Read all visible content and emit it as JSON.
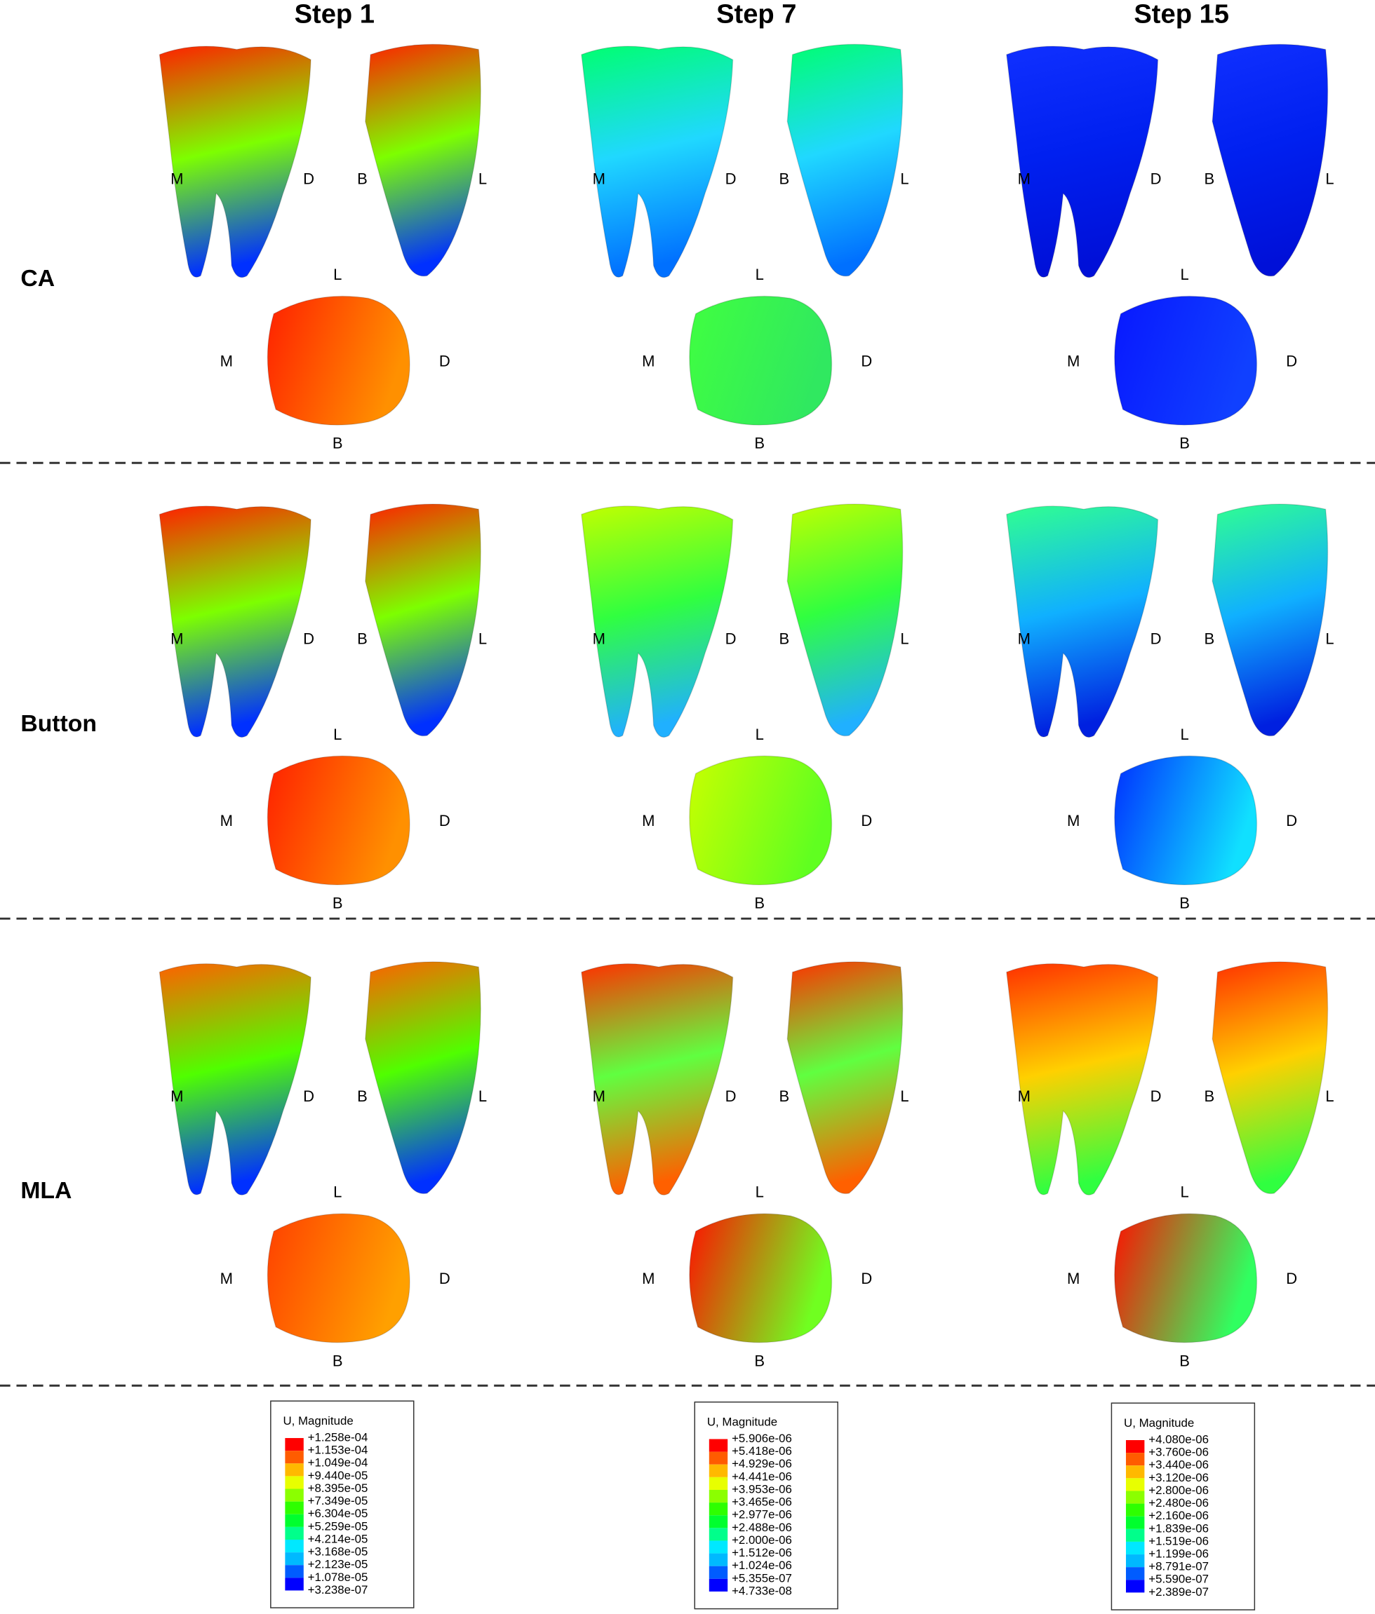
{
  "column_headers": [
    "Step 1",
    "Step 7",
    "Step 15"
  ],
  "row_labels": [
    "CA",
    "Button",
    "MLA"
  ],
  "orientation": {
    "mesial": "M",
    "distal": "D",
    "buccal": "B",
    "lingual": "L"
  },
  "legend_colors": [
    "#ff0000",
    "#ff5c00",
    "#ffb900",
    "#e8ff00",
    "#8bff00",
    "#2eff00",
    "#00ff2e",
    "#00ff8b",
    "#00e8ff",
    "#00b9ff",
    "#005cff",
    "#0000ff"
  ],
  "legends": [
    {
      "title": "U, Magnitude",
      "entries": [
        "+1.258e-04",
        "+1.153e-04",
        "+1.049e-04",
        "+9.440e-05",
        "+8.395e-05",
        "+7.349e-05",
        "+6.304e-05",
        "+5.259e-05",
        "+4.214e-05",
        "+3.168e-05",
        "+2.123e-05",
        "+1.078e-05",
        "+3.238e-07"
      ]
    },
    {
      "title": "U, Magnitude",
      "entries": [
        "+5.906e-06",
        "+5.418e-06",
        "+4.929e-06",
        "+4.441e-06",
        "+3.953e-06",
        "+3.465e-06",
        "+2.977e-06",
        "+2.488e-06",
        "+2.000e-06",
        "+1.512e-06",
        "+1.024e-06",
        "+5.355e-07",
        "+4.733e-08"
      ]
    },
    {
      "title": "U, Magnitude",
      "entries": [
        "+4.080e-06",
        "+3.760e-06",
        "+3.440e-06",
        "+3.120e-06",
        "+2.800e-06",
        "+2.480e-06",
        "+2.160e-06",
        "+1.839e-06",
        "+1.519e-06",
        "+1.199e-06",
        "+8.791e-07",
        "+5.590e-07",
        "+2.389e-07"
      ]
    }
  ]
}
